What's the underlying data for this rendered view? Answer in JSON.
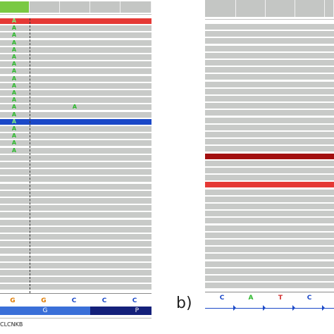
{
  "panel_a": {
    "reference_bases": [
      "G",
      "G",
      "C",
      "C",
      "C"
    ],
    "amino_acids": [
      "G",
      "P"
    ],
    "gene_name": "CLCNKB",
    "read_base": "A",
    "extra_base": "A"
  },
  "panel_b": {
    "label": "b)",
    "reference_bases": [
      "C",
      "A",
      "T",
      "C"
    ]
  },
  "colors": {
    "base_A": "#2db82d",
    "base_G": "#e07b00",
    "base_C": "#1a48c8",
    "base_T": "#d32f2f",
    "read_gray": "#c8cac8",
    "read_red": "#e53935",
    "read_blue": "#1a48c8",
    "read_darkred": "#a31010"
  }
}
